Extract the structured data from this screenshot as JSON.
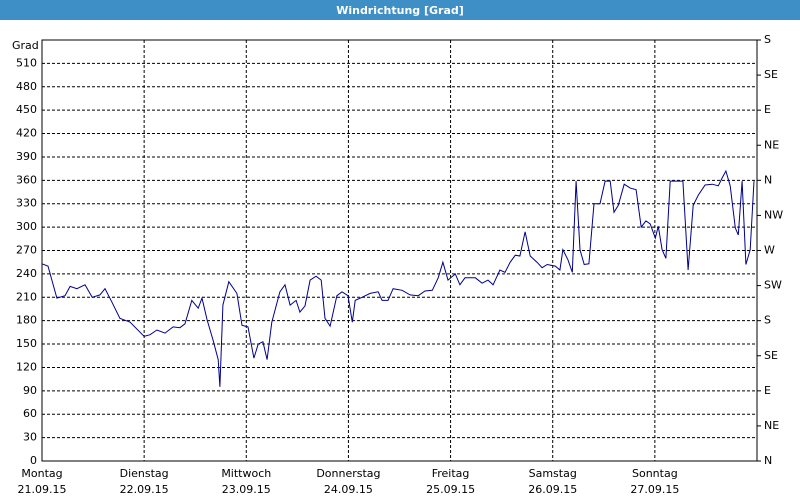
{
  "chart_data": {
    "type": "line",
    "title": "Windrichtung [Grad]",
    "y_label": "Grad",
    "xlim": [
      0,
      168
    ],
    "ylim": [
      0,
      540
    ],
    "y2lim": [
      0,
      540
    ],
    "xticks": [
      {
        "value": 0,
        "label": "Montag",
        "sublabel": "21.09.15"
      },
      {
        "value": 24,
        "label": "Dienstag",
        "sublabel": "22.09.15"
      },
      {
        "value": 48,
        "label": "Mittwoch",
        "sublabel": "23.09.15"
      },
      {
        "value": 72,
        "label": "Donnerstag",
        "sublabel": "24.09.15"
      },
      {
        "value": 96,
        "label": "Freitag",
        "sublabel": "25.09.15"
      },
      {
        "value": 120,
        "label": "Samstag",
        "sublabel": "26.09.15"
      },
      {
        "value": 144,
        "label": "Sonntag",
        "sublabel": "27.09.15"
      }
    ],
    "yticks": [
      0,
      30,
      60,
      90,
      120,
      150,
      180,
      210,
      240,
      270,
      300,
      330,
      360,
      390,
      420,
      450,
      480,
      510
    ],
    "y2ticks": [
      {
        "value": 0,
        "label": "N"
      },
      {
        "value": 45,
        "label": "NE"
      },
      {
        "value": 90,
        "label": "E"
      },
      {
        "value": 135,
        "label": "SE"
      },
      {
        "value": 180,
        "label": "S"
      },
      {
        "value": 225,
        "label": "SW"
      },
      {
        "value": 270,
        "label": "W"
      },
      {
        "value": 315,
        "label": "NW"
      },
      {
        "value": 360,
        "label": "N"
      },
      {
        "value": 405,
        "label": "NE"
      },
      {
        "value": 450,
        "label": "E"
      },
      {
        "value": 495,
        "label": "SE"
      },
      {
        "value": 540,
        "label": "S"
      }
    ],
    "grid": true,
    "series": [
      {
        "color": "#00008b",
        "x": [
          0,
          1.4,
          3.5,
          5.4,
          6.6,
          8.2,
          10.1,
          11.8,
          13.6,
          14.8,
          16.5,
          18.3,
          20.7,
          24,
          25.4,
          27.0,
          28.9,
          30.8,
          32.4,
          33.6,
          35.2,
          36.7,
          37.6,
          38.8,
          40.2,
          41.4,
          41.8,
          42.5,
          43.9,
          45.8,
          47,
          48.4,
          49.8,
          50.8,
          51.9,
          52.9,
          54.0,
          55.9,
          57.1,
          58.3,
          59.7,
          60.6,
          61.8,
          63.0,
          64.4,
          65.6,
          66.5,
          67.7,
          69.3,
          70.5,
          71.9,
          72.9,
          73.6,
          75.2,
          77.1,
          79.0,
          79.9,
          81.3,
          82.5,
          84.6,
          86.5,
          88.4,
          90.0,
          91.7,
          93.1,
          94.2,
          95.4,
          97.1,
          98.2,
          99.4,
          101.8,
          103.4,
          104.8,
          106.0,
          107.6,
          108.8,
          110.0,
          111.2,
          112.3,
          113.5,
          114.7,
          116.3,
          117.5,
          118.7,
          120.6,
          121.7,
          122.4,
          123.6,
          124.6,
          125.5,
          126.4,
          127.4,
          128.5,
          129.7,
          131.1,
          132.3,
          133.5,
          134.4,
          135.4,
          136.8,
          138.2,
          139.6,
          140.8,
          141.9,
          142.9,
          144.1,
          144.8,
          145.7,
          146.6,
          147.6,
          149.0,
          150.6,
          151.8,
          153.0,
          154.2,
          155.8,
          157.5,
          158.9,
          159.8,
          160.7,
          161.7,
          162.9,
          163.6,
          164.5,
          165.4,
          166.4,
          167.3
        ],
        "values": [
          253,
          250,
          209,
          212,
          224,
          221,
          226,
          210,
          213,
          221,
          203,
          183,
          178,
          160,
          162,
          168,
          164,
          172,
          171,
          176,
          206,
          196,
          209,
          181,
          155,
          130,
          95,
          200,
          230,
          215,
          174,
          172,
          132,
          150,
          153,
          130,
          178,
          217,
          226,
          200,
          206,
          191,
          199,
          232,
          237,
          232,
          183,
          173,
          212,
          217,
          212,
          178,
          206,
          210,
          215,
          217,
          206,
          206,
          221,
          219,
          213,
          212,
          218,
          219,
          235,
          255,
          232,
          240,
          226,
          235,
          235,
          228,
          232,
          226,
          245,
          242,
          255,
          264,
          263,
          294,
          263,
          255,
          248,
          252,
          250,
          245,
          271,
          258,
          242,
          359,
          271,
          252,
          253,
          330,
          330,
          359,
          359,
          319,
          328,
          355,
          350,
          348,
          300,
          308,
          304,
          286,
          301,
          271,
          260,
          359,
          359,
          359,
          245,
          328,
          341,
          354,
          355,
          353,
          363,
          372,
          353,
          299,
          290,
          359,
          252,
          271,
          359
        ]
      }
    ]
  }
}
